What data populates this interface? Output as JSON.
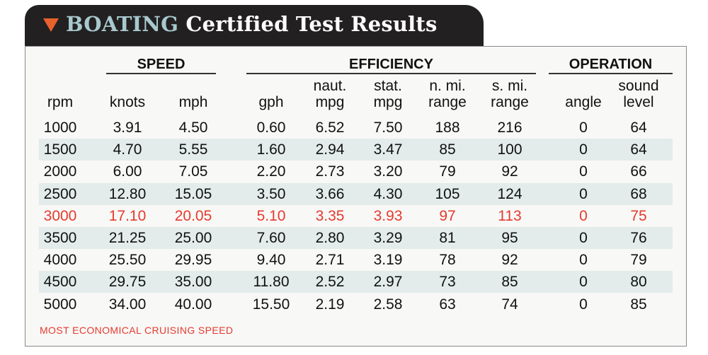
{
  "title": {
    "prefix": "BOATING",
    "rest": "Certified Test Results"
  },
  "groups": {
    "speed": "SPEED",
    "efficiency": "EFFICIENCY",
    "operation": "OPERATION"
  },
  "columns": [
    [
      "",
      "rpm"
    ],
    [
      "",
      "knots"
    ],
    [
      "",
      "mph"
    ],
    [
      "",
      "gph"
    ],
    [
      "naut.",
      "mpg"
    ],
    [
      "stat.",
      "mpg"
    ],
    [
      "n. mi.",
      "range"
    ],
    [
      "s. mi.",
      "range"
    ],
    [
      "",
      "angle"
    ],
    [
      "sound",
      "level"
    ]
  ],
  "rows": [
    [
      "1000",
      "3.91",
      "4.50",
      "0.60",
      "6.52",
      "7.50",
      "188",
      "216",
      "0",
      "64"
    ],
    [
      "1500",
      "4.70",
      "5.55",
      "1.60",
      "2.94",
      "3.47",
      "85",
      "100",
      "0",
      "64"
    ],
    [
      "2000",
      "6.00",
      "7.05",
      "2.20",
      "2.73",
      "3.20",
      "79",
      "92",
      "0",
      "66"
    ],
    [
      "2500",
      "12.80",
      "15.05",
      "3.50",
      "3.66",
      "4.30",
      "105",
      "124",
      "0",
      "68"
    ],
    [
      "3000",
      "17.10",
      "20.05",
      "5.10",
      "3.35",
      "3.93",
      "97",
      "113",
      "0",
      "75"
    ],
    [
      "3500",
      "21.25",
      "25.00",
      "7.60",
      "2.80",
      "3.29",
      "81",
      "95",
      "0",
      "76"
    ],
    [
      "4000",
      "25.50",
      "29.95",
      "9.40",
      "2.71",
      "3.19",
      "78",
      "92",
      "0",
      "79"
    ],
    [
      "4500",
      "29.75",
      "35.00",
      "11.80",
      "2.52",
      "2.97",
      "73",
      "85",
      "0",
      "80"
    ],
    [
      "5000",
      "34.00",
      "40.00",
      "15.50",
      "2.19",
      "2.58",
      "63",
      "74",
      "0",
      "85"
    ]
  ],
  "highlight_row": 4,
  "shaded_rows": [
    1,
    3,
    5,
    7
  ],
  "footnote": "MOST ECONOMICAL CRUISING SPEED",
  "colors": {
    "highlight": "#e53a2f",
    "shade": "#e3ebeb",
    "tab": "#232021",
    "accent": "#e8622c"
  },
  "icons": {
    "title_marker": "triangle-down-icon"
  }
}
